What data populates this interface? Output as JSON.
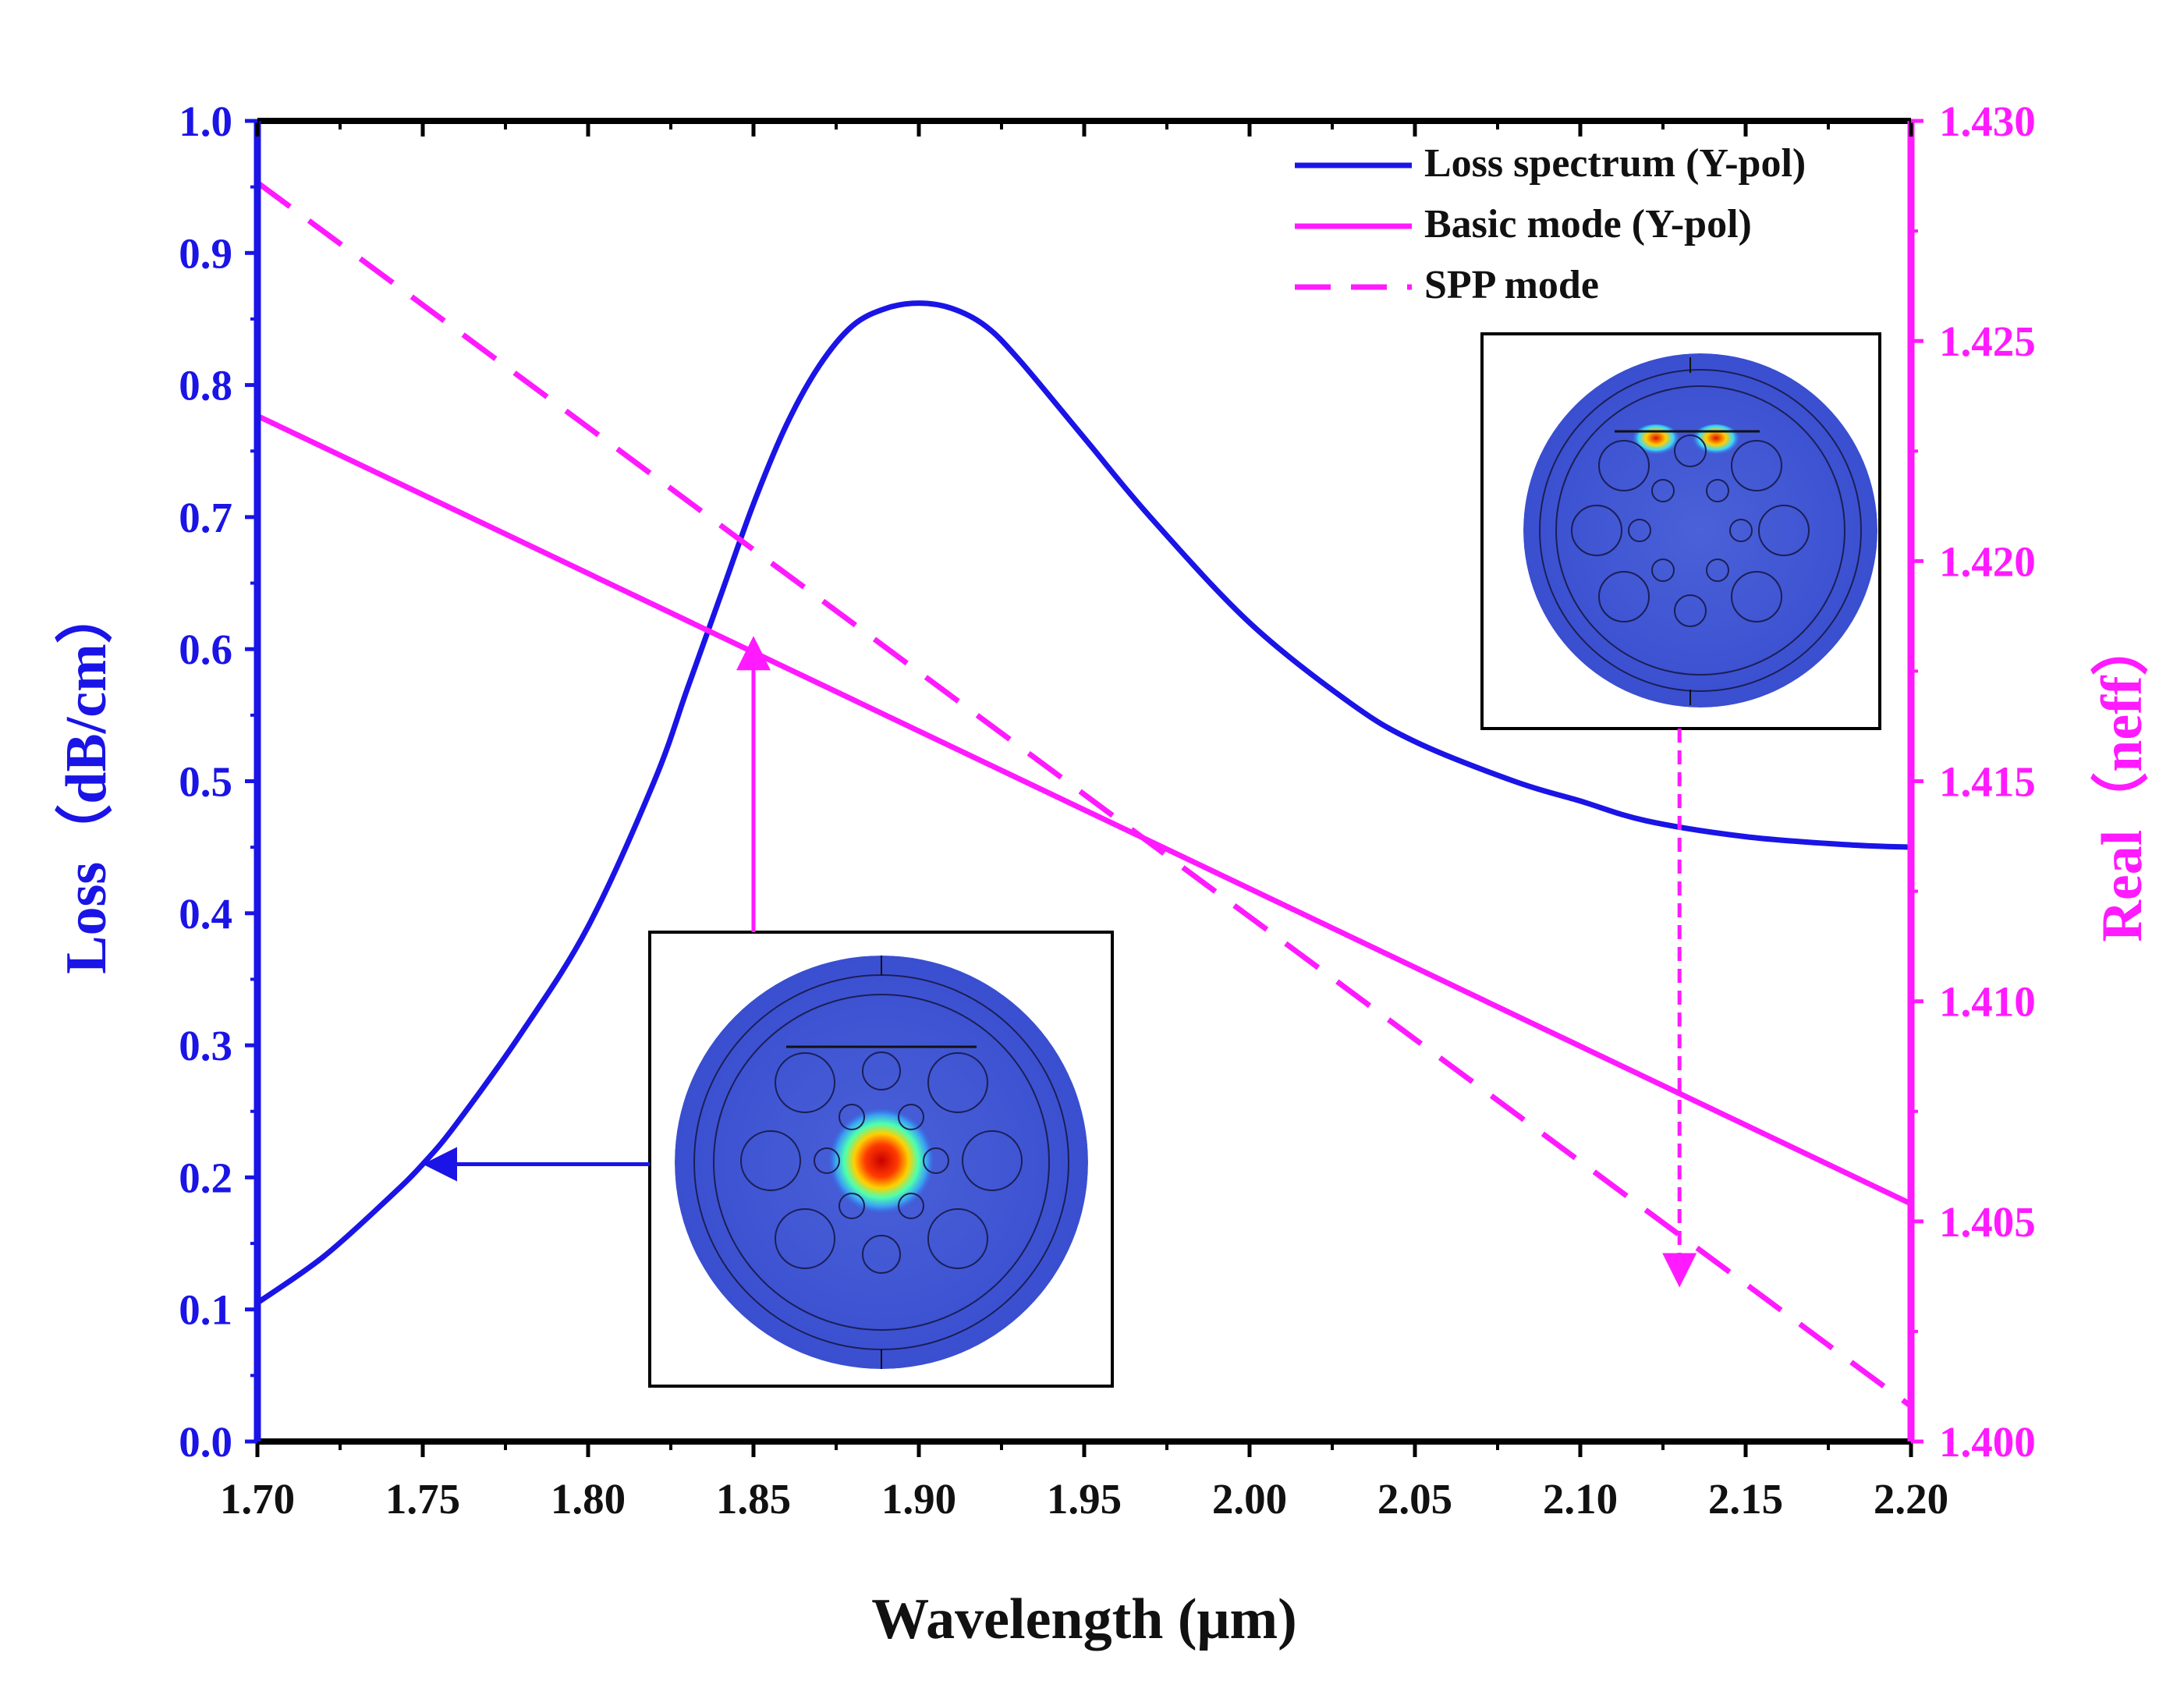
{
  "chart_data": {
    "type": "line",
    "x_axis": {
      "label": "Wavelength (μm)",
      "range": [
        1.7,
        2.2
      ],
      "ticks": [
        "1.70",
        "1.75",
        "1.80",
        "1.85",
        "1.90",
        "1.95",
        "2.00",
        "2.05",
        "2.10",
        "2.15",
        "2.20"
      ]
    },
    "y_left": {
      "label": "Loss（dB/cm）",
      "range": [
        0.0,
        1.0
      ],
      "ticks": [
        "0.0",
        "0.1",
        "0.2",
        "0.3",
        "0.4",
        "0.5",
        "0.6",
        "0.7",
        "0.8",
        "0.9",
        "1.0"
      ],
      "color": "#1a14e6"
    },
    "y_right": {
      "label": "Real（neff）",
      "range": [
        1.4,
        1.43
      ],
      "ticks": [
        "1.400",
        "1.405",
        "1.410",
        "1.415",
        "1.420",
        "1.425",
        "1.430"
      ],
      "color": "#ff1aff"
    },
    "series": [
      {
        "name": "Loss spectrum (Y-pol)",
        "axis": "left",
        "style": "solid",
        "color": "#1a14e6",
        "x": [
          1.7,
          1.72,
          1.74,
          1.75,
          1.76,
          1.78,
          1.8,
          1.82,
          1.83,
          1.84,
          1.85,
          1.86,
          1.87,
          1.88,
          1.89,
          1.9,
          1.91,
          1.92,
          1.93,
          1.95,
          1.97,
          2.0,
          2.03,
          2.05,
          2.08,
          2.1,
          2.12,
          2.15,
          2.18,
          2.2
        ],
        "y": [
          0.105,
          0.14,
          0.185,
          0.21,
          0.24,
          0.31,
          0.39,
          0.5,
          0.57,
          0.64,
          0.71,
          0.77,
          0.815,
          0.845,
          0.858,
          0.862,
          0.858,
          0.845,
          0.82,
          0.76,
          0.7,
          0.62,
          0.56,
          0.53,
          0.5,
          0.485,
          0.47,
          0.458,
          0.452,
          0.45
        ]
      },
      {
        "name": "Basic mode (Y-pol)",
        "axis": "right",
        "style": "solid",
        "color": "#ff1aff",
        "x": [
          1.7,
          2.2
        ],
        "y": [
          1.4233,
          1.4054
        ]
      },
      {
        "name": "SPP mode",
        "axis": "right",
        "style": "dashed",
        "color": "#ff1aff",
        "x": [
          1.7,
          2.2
        ],
        "y": [
          1.4286,
          1.4008
        ]
      }
    ],
    "annotations": [
      {
        "type": "arrow",
        "target_series": "Loss spectrum (Y-pol)",
        "x": 1.75,
        "y": 0.21,
        "color": "#1a14e6",
        "points_to": "left"
      },
      {
        "type": "arrow",
        "target_series": "Basic mode (Y-pol)",
        "x": 1.85,
        "y": 1.4183,
        "color": "#ff1aff",
        "points_to": "up"
      },
      {
        "type": "arrow",
        "target_series": "SPP mode",
        "x": 2.13,
        "y": 1.4035,
        "color": "#ff1aff",
        "points_to": "down",
        "style": "dashed"
      }
    ],
    "insets": [
      {
        "name": "basic-mode-field",
        "depicts": "core-confined fundamental mode field"
      },
      {
        "name": "spp-mode-field",
        "depicts": "surface plasmon mode field at metal film"
      }
    ],
    "legend": {
      "position": "top-right",
      "entries": [
        "Loss spectrum (Y-pol)",
        "Basic mode (Y-pol)",
        "SPP mode"
      ]
    }
  }
}
